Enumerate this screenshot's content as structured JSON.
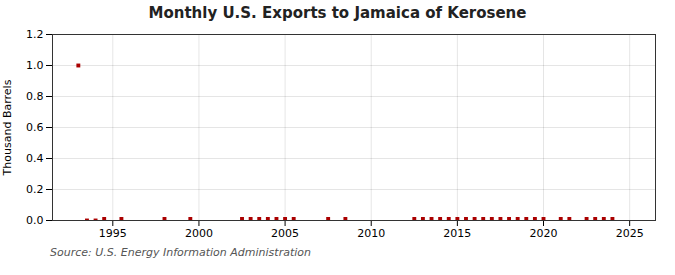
{
  "chart_data": {
    "type": "scatter",
    "title": "Monthly U.S. Exports to Jamaica of Kerosene",
    "ylabel": "Thousand Barrels",
    "source": "Source: U.S. Energy Information Administration",
    "x": [
      1993.0,
      1993.5,
      1994.0,
      1994.5,
      1995.5,
      1998.0,
      1999.5,
      2002.5,
      2003.0,
      2003.5,
      2004.0,
      2004.5,
      2005.0,
      2005.5,
      2007.5,
      2008.5,
      2012.5,
      2013.0,
      2013.5,
      2014.0,
      2014.5,
      2015.0,
      2015.5,
      2016.0,
      2016.5,
      2017.0,
      2017.5,
      2018.0,
      2018.5,
      2019.0,
      2019.5,
      2020.0,
      2021.0,
      2021.5,
      2022.5,
      2023.0,
      2023.5,
      2024.0
    ],
    "values": [
      1.0,
      0.0,
      0.0,
      0.01,
      0.01,
      0.01,
      0.01,
      0.01,
      0.01,
      0.01,
      0.01,
      0.01,
      0.01,
      0.01,
      0.01,
      0.01,
      0.01,
      0.01,
      0.01,
      0.01,
      0.01,
      0.01,
      0.01,
      0.01,
      0.01,
      0.01,
      0.01,
      0.01,
      0.01,
      0.01,
      0.01,
      0.01,
      0.01,
      0.01,
      0.01,
      0.01,
      0.01,
      0.01
    ],
    "color": "#AA0000",
    "marker": "square",
    "xlim": [
      1991.5,
      2026.5
    ],
    "xticks": [
      1995,
      2000,
      2005,
      2010,
      2015,
      2020,
      2025
    ],
    "ylim": [
      0.0,
      1.2
    ],
    "yticks": [
      {
        "value": 0.0,
        "label": "0.0"
      },
      0.2,
      0.4,
      0.6,
      0.8,
      {
        "value": 1.0,
        "label": "1.0"
      },
      1.2
    ],
    "grid": true
  }
}
